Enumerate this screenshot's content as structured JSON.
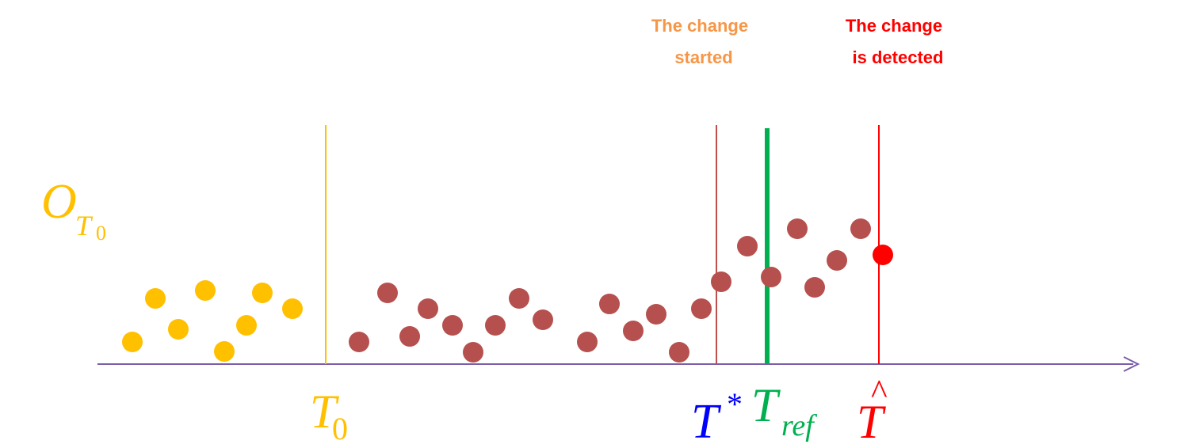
{
  "annotations": {
    "change_started": [
      "The change",
      "started"
    ],
    "change_detected": [
      "The change",
      "is detected"
    ]
  },
  "labels": {
    "o_t0": {
      "main": "O",
      "sub1": "T",
      "sub2": "0"
    },
    "t0": {
      "main": "T",
      "sub": "0"
    },
    "t_star": {
      "main": "T",
      "sup": "*"
    },
    "t_ref": {
      "main": "T",
      "sub": "ref"
    },
    "t_hat": {
      "main": "T",
      "accent": "^"
    }
  },
  "colors": {
    "axis": "#7a5ea8",
    "yellow": "#ffc000",
    "brown": "#b5504e",
    "red": "#ff0000",
    "green": "#00b050",
    "blue": "#0000ff",
    "orange": "#f79646",
    "thin_red": "#c0504d"
  },
  "points": {
    "initial": [
      [
        167,
        432
      ],
      [
        196,
        377
      ],
      [
        225,
        416
      ],
      [
        259,
        367
      ],
      [
        283,
        444
      ],
      [
        311,
        411
      ],
      [
        331,
        370
      ],
      [
        369,
        390
      ]
    ],
    "normal": [
      [
        453,
        432
      ],
      [
        489,
        370
      ],
      [
        517,
        425
      ],
      [
        540,
        390
      ],
      [
        571,
        411
      ],
      [
        597,
        445
      ],
      [
        625,
        411
      ],
      [
        655,
        377
      ],
      [
        685,
        404
      ],
      [
        741,
        432
      ],
      [
        769,
        384
      ],
      [
        799,
        418
      ],
      [
        828,
        397
      ],
      [
        857,
        445
      ],
      [
        885,
        390
      ],
      [
        910,
        356
      ],
      [
        943,
        311
      ],
      [
        973,
        350
      ],
      [
        1006,
        289
      ],
      [
        1028,
        363
      ],
      [
        1056,
        329
      ],
      [
        1086,
        289
      ]
    ],
    "detected": [
      1114,
      322
    ]
  }
}
